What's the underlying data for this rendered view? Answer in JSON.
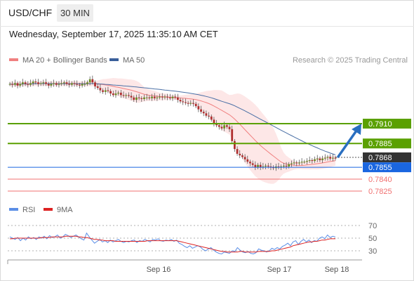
{
  "header": {
    "symbol": "USD/CHF",
    "timeframe": "30 MIN",
    "datetime": "Wednesday, September 17, 2025 11:35:10 AM CET"
  },
  "legend": {
    "ma20": "MA 20 + Bollinger Bands",
    "ma50": "MA 50",
    "credit": "Research © 2025 Trading Central"
  },
  "rsi_legend": {
    "rsi": "RSI",
    "ma9": "9MA"
  },
  "colors": {
    "ma20": "#f08080",
    "ma50": "#4a6fa5",
    "bollinger_fill": "#fde4e4",
    "resistance": "#5aa000",
    "support": "#f07070",
    "pivot": "#1a66e0",
    "current": "#333333",
    "rsi": "#5b8ee6",
    "rsi_ma": "#dd2222",
    "arrow": "#2a6fc0"
  },
  "chart_data": [
    {
      "type": "candlestick",
      "title": "USD/CHF",
      "x_ticks": [
        "Sep 16",
        "Sep 17",
        "Sep 18"
      ],
      "ylim": [
        0.7815,
        0.7935
      ],
      "current_price": "0.7868",
      "levels": [
        {
          "label": "0.7910",
          "value": 0.791,
          "kind": "resistance"
        },
        {
          "label": "0.7885",
          "value": 0.7885,
          "kind": "resistance"
        },
        {
          "label": "0.7855",
          "value": 0.7855,
          "kind": "pivot"
        },
        {
          "label": "0.7840",
          "value": 0.784,
          "kind": "support"
        },
        {
          "label": "0.7825",
          "value": 0.7825,
          "kind": "support"
        }
      ],
      "close": [
        0.796,
        0.7959,
        0.7961,
        0.7958,
        0.796,
        0.7962,
        0.796,
        0.7959,
        0.7961,
        0.7963,
        0.7962,
        0.796,
        0.7961,
        0.7962,
        0.796,
        0.7958,
        0.796,
        0.7961,
        0.7959,
        0.796,
        0.7961,
        0.7962,
        0.796,
        0.7959,
        0.7961,
        0.796,
        0.7959,
        0.7958,
        0.796,
        0.796,
        0.7962,
        0.7966,
        0.7962,
        0.7957,
        0.7955,
        0.7952,
        0.795,
        0.7952,
        0.7951,
        0.7948,
        0.7946,
        0.7948,
        0.7949,
        0.7946,
        0.7945,
        0.7946,
        0.7945,
        0.7943,
        0.794,
        0.7943,
        0.7942,
        0.7941,
        0.7943,
        0.7943,
        0.7942,
        0.7944,
        0.7942,
        0.7943,
        0.7944,
        0.7943,
        0.7944,
        0.7943,
        0.7942,
        0.7944,
        0.7943,
        0.794,
        0.7938,
        0.7937,
        0.7936,
        0.7935,
        0.7936,
        0.7935,
        0.7932,
        0.7928,
        0.7925,
        0.7923,
        0.792,
        0.7919,
        0.7915,
        0.791,
        0.7908,
        0.7906,
        0.7904,
        0.7908,
        0.7906,
        0.7903,
        0.7888,
        0.7878,
        0.7872,
        0.787,
        0.7868,
        0.7865,
        0.7862,
        0.786,
        0.7858,
        0.7855,
        0.7858,
        0.7855,
        0.7856,
        0.7857,
        0.7856,
        0.7855,
        0.7854,
        0.7856,
        0.7855,
        0.7856,
        0.7857,
        0.7856,
        0.7859,
        0.786,
        0.7861,
        0.786,
        0.7861,
        0.7862,
        0.7862,
        0.7863,
        0.7864,
        0.7863,
        0.7865,
        0.7866,
        0.7864,
        0.7866,
        0.7867,
        0.7868,
        0.7866,
        0.7867,
        0.7866
      ]
    },
    {
      "type": "line",
      "title": "RSI",
      "y_ticks": [
        "70",
        "50",
        "30"
      ],
      "ylim": [
        20,
        80
      ],
      "series": [
        {
          "name": "RSI",
          "values": [
            52,
            50,
            48,
            51,
            46,
            50,
            47,
            52,
            49,
            51,
            48,
            52,
            50,
            53,
            49,
            54,
            51,
            52,
            55,
            50,
            52,
            56,
            54,
            51,
            53,
            55,
            52,
            49,
            47,
            58,
            52,
            47,
            42,
            45,
            48,
            44,
            46,
            43,
            47,
            44,
            46,
            48,
            45,
            43,
            45,
            44,
            46,
            47,
            43,
            46,
            45,
            48,
            46,
            44,
            48,
            47,
            49,
            46,
            45,
            47,
            46,
            48,
            45,
            47,
            42,
            40,
            37,
            35,
            38,
            34,
            36,
            38,
            36,
            32,
            30,
            33,
            35,
            31,
            28,
            26,
            25,
            28,
            27,
            26,
            30,
            29,
            35,
            31,
            28,
            27,
            29,
            26,
            25,
            27,
            33,
            31,
            30,
            28,
            30,
            34,
            32,
            35,
            33,
            37,
            39,
            42,
            38,
            44,
            46,
            40,
            45,
            48,
            44,
            47,
            43,
            46,
            45,
            50,
            52,
            49,
            55,
            51,
            53,
            52
          ]
        },
        {
          "name": "9MA",
          "values": [
            49,
            49,
            50,
            50,
            50,
            50,
            50,
            50,
            50,
            50,
            50,
            50,
            51,
            51,
            51,
            51,
            52,
            52,
            52,
            52,
            52,
            53,
            53,
            53,
            53,
            53,
            52,
            52,
            51,
            51,
            50,
            49,
            48,
            48,
            47,
            47,
            46,
            46,
            46,
            46,
            45,
            45,
            45,
            45,
            45,
            45,
            45,
            45,
            45,
            45,
            45,
            45,
            46,
            46,
            46,
            46,
            46,
            46,
            46,
            46,
            46,
            46,
            46,
            46,
            45,
            44,
            43,
            42,
            41,
            40,
            39,
            38,
            37,
            36,
            35,
            34,
            33,
            32,
            31,
            30,
            29,
            29,
            28,
            28,
            28,
            28,
            28,
            29,
            29,
            28,
            28,
            28,
            28,
            28,
            29,
            29,
            29,
            29,
            29,
            30,
            30,
            31,
            32,
            33,
            34,
            35,
            36,
            38,
            39,
            40,
            41,
            42,
            43,
            44,
            44,
            45,
            45,
            46,
            47,
            47,
            48,
            49,
            49,
            49
          ]
        }
      ]
    }
  ]
}
